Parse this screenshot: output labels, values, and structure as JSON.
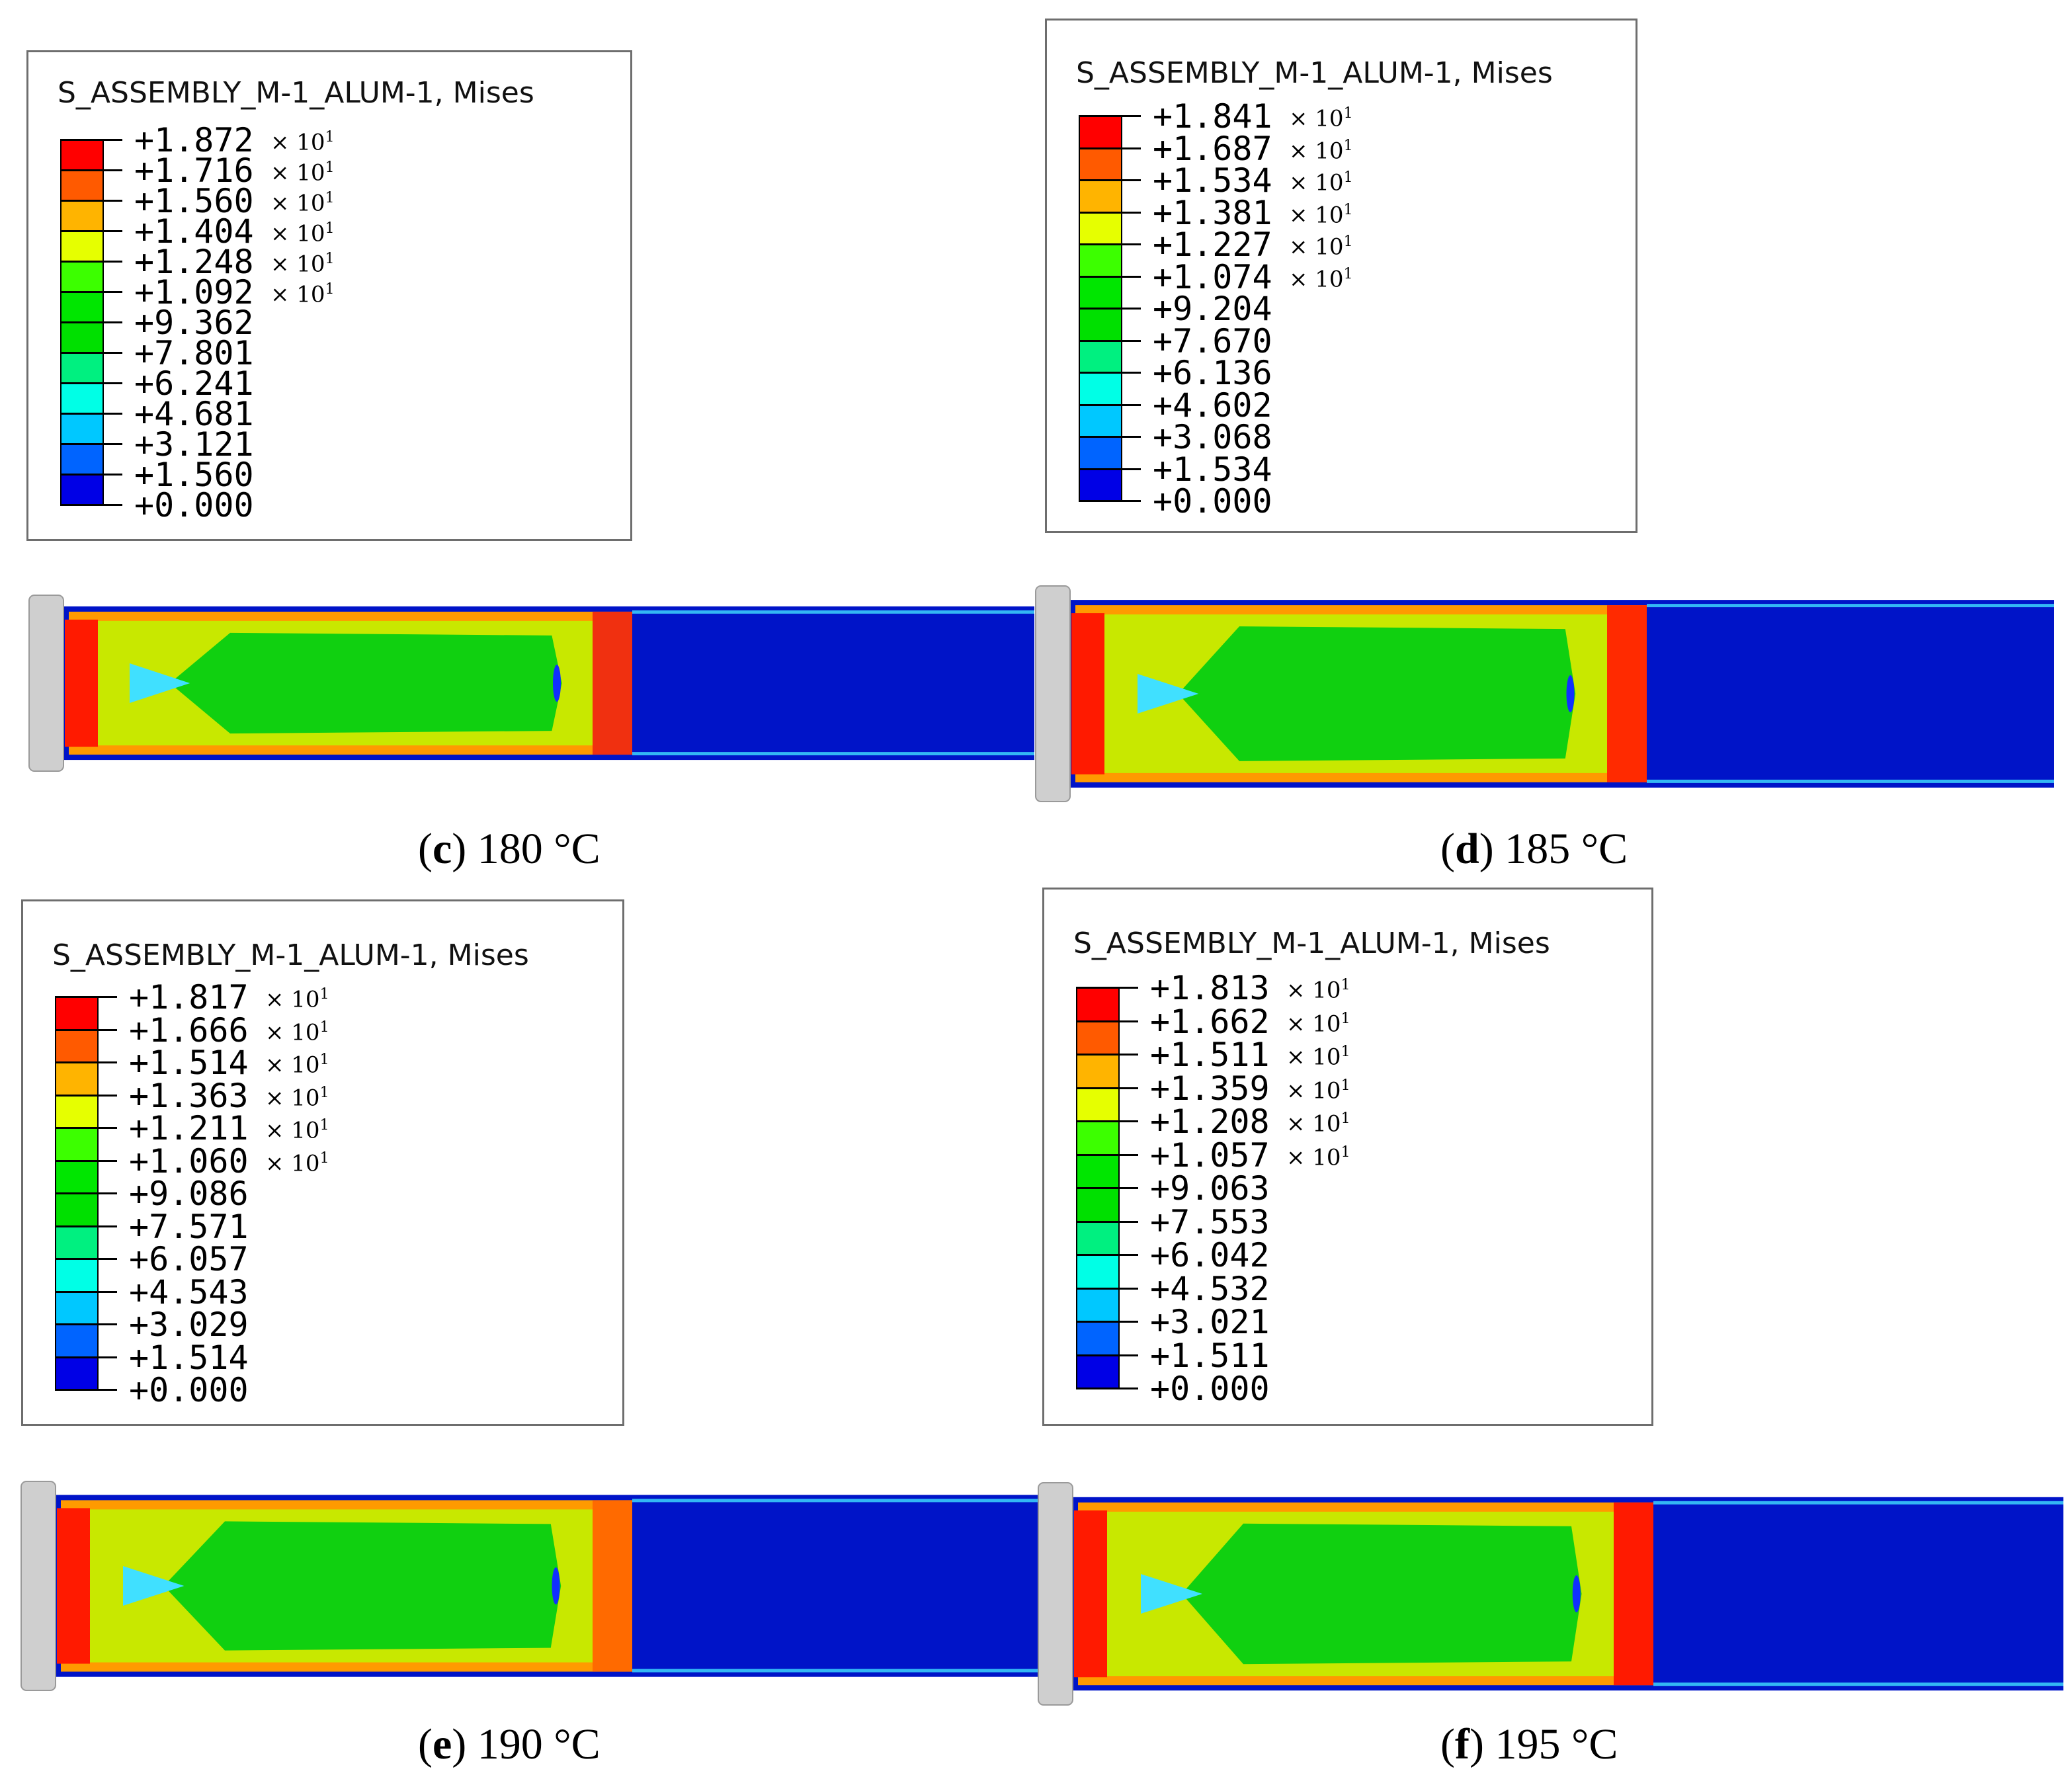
{
  "panels": [
    {
      "id": "c",
      "legend_title": "S_ASSEMBLY_M-1_ALUM-1, Mises",
      "levels": [
        "+1.872",
        "+1.716",
        "+1.560",
        "+1.404",
        "+1.248",
        "+1.092",
        "+9.362",
        "+7.801",
        "+6.241",
        "+4.681",
        "+3.121",
        "+1.560",
        "+0.000"
      ],
      "multiplier": "× 10",
      "exponent": "1",
      "scaled_count": 6,
      "caption_letter": "c",
      "caption_text": " 180 °C",
      "peak_end_color": "#f03010"
    },
    {
      "id": "d",
      "legend_title": "S_ASSEMBLY_M-1_ALUM-1, Mises",
      "levels": [
        "+1.841",
        "+1.687",
        "+1.534",
        "+1.381",
        "+1.227",
        "+1.074",
        "+9.204",
        "+7.670",
        "+6.136",
        "+4.602",
        "+3.068",
        "+1.534",
        "+0.000"
      ],
      "multiplier": "× 10",
      "exponent": "1",
      "scaled_count": 6,
      "caption_letter": "d",
      "caption_text": " 185 °C",
      "peak_end_color": "#ff2a00"
    },
    {
      "id": "e",
      "legend_title": "S_ASSEMBLY_M-1_ALUM-1, Mises",
      "levels": [
        "+1.817",
        "+1.666",
        "+1.514",
        "+1.363",
        "+1.211",
        "+1.060",
        "+9.086",
        "+7.571",
        "+6.057",
        "+4.543",
        "+3.029",
        "+1.514",
        "+0.000"
      ],
      "multiplier": "× 10",
      "exponent": "1",
      "scaled_count": 6,
      "caption_letter": "e",
      "caption_text": " 190 °C",
      "peak_end_color": "#ff6a00"
    },
    {
      "id": "f",
      "legend_title": "S_ASSEMBLY_M-1_ALUM-1, Mises",
      "levels": [
        "+1.813",
        "+1.662",
        "+1.511",
        "+1.359",
        "+1.208",
        "+1.057",
        "+9.063",
        "+7.553",
        "+6.042",
        "+4.532",
        "+3.021",
        "+1.511",
        "+0.000"
      ],
      "multiplier": "× 10",
      "exponent": "1",
      "scaled_count": 6,
      "caption_letter": "f",
      "caption_text": " 195 °C",
      "peak_end_color": "#ff1a00"
    }
  ],
  "colormap": [
    "#ff0000",
    "#ff5a00",
    "#ffb400",
    "#e6ff00",
    "#3cff00",
    "#00e600",
    "#00e000",
    "#00f080",
    "#00ffe6",
    "#00c8ff",
    "#0064ff",
    "#0000e6"
  ],
  "colors": {
    "die": "#cfcfcf",
    "blue_field": "#0014c8",
    "green_core": "#10d010",
    "yellow": "#c8e800",
    "orange": "#ff9a00",
    "red": "#ff1a00",
    "cyan": "#40e0ff"
  }
}
